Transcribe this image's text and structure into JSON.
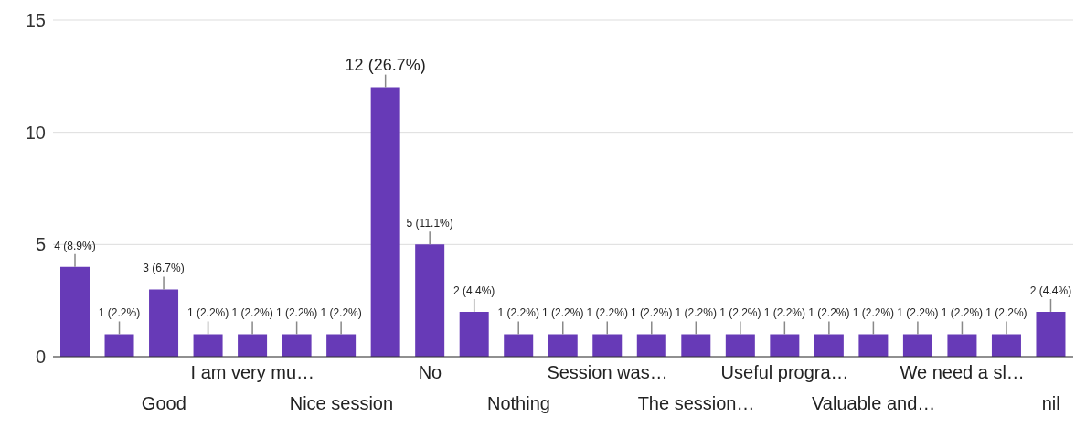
{
  "chart_data": {
    "type": "bar",
    "categories": [
      null,
      null,
      "Good",
      null,
      "I am very mu…",
      null,
      "Nice session",
      null,
      "No",
      null,
      "Nothing",
      null,
      "Session was…",
      null,
      "The session…",
      null,
      "Useful progra…",
      null,
      "Valuable and…",
      null,
      "We need a sl…",
      null,
      "nil"
    ],
    "values": [
      4,
      1,
      3,
      1,
      1,
      1,
      1,
      12,
      5,
      2,
      1,
      1,
      1,
      1,
      1,
      1,
      1,
      1,
      1,
      1,
      1,
      1,
      2
    ],
    "value_labels": [
      "4 (8.9%)",
      "1 (2.2%)",
      "3 (6.7%)",
      "1 (2.2%)",
      "1 (2.2%)",
      "1 (2.2%)",
      "1 (2.2%)",
      "12 (26.7%)",
      "5 (11.1%)",
      "2 (4.4%)",
      "1 (2.2%)",
      "1 (2.2%)",
      "1 (2.2%)",
      "1 (2.2%)",
      "1 (2.2%)",
      "1 (2.2%)",
      "1 (2.2%)",
      "1 (2.2%)",
      "1 (2.2%)",
      "1 (2.2%)",
      "1 (2.2%)",
      "1 (2.2%)",
      "2 (4.4%)"
    ],
    "color": "#673ab7",
    "ylim": [
      0,
      15
    ],
    "yticks": [
      0,
      5,
      10,
      15
    ],
    "grid": "y"
  }
}
